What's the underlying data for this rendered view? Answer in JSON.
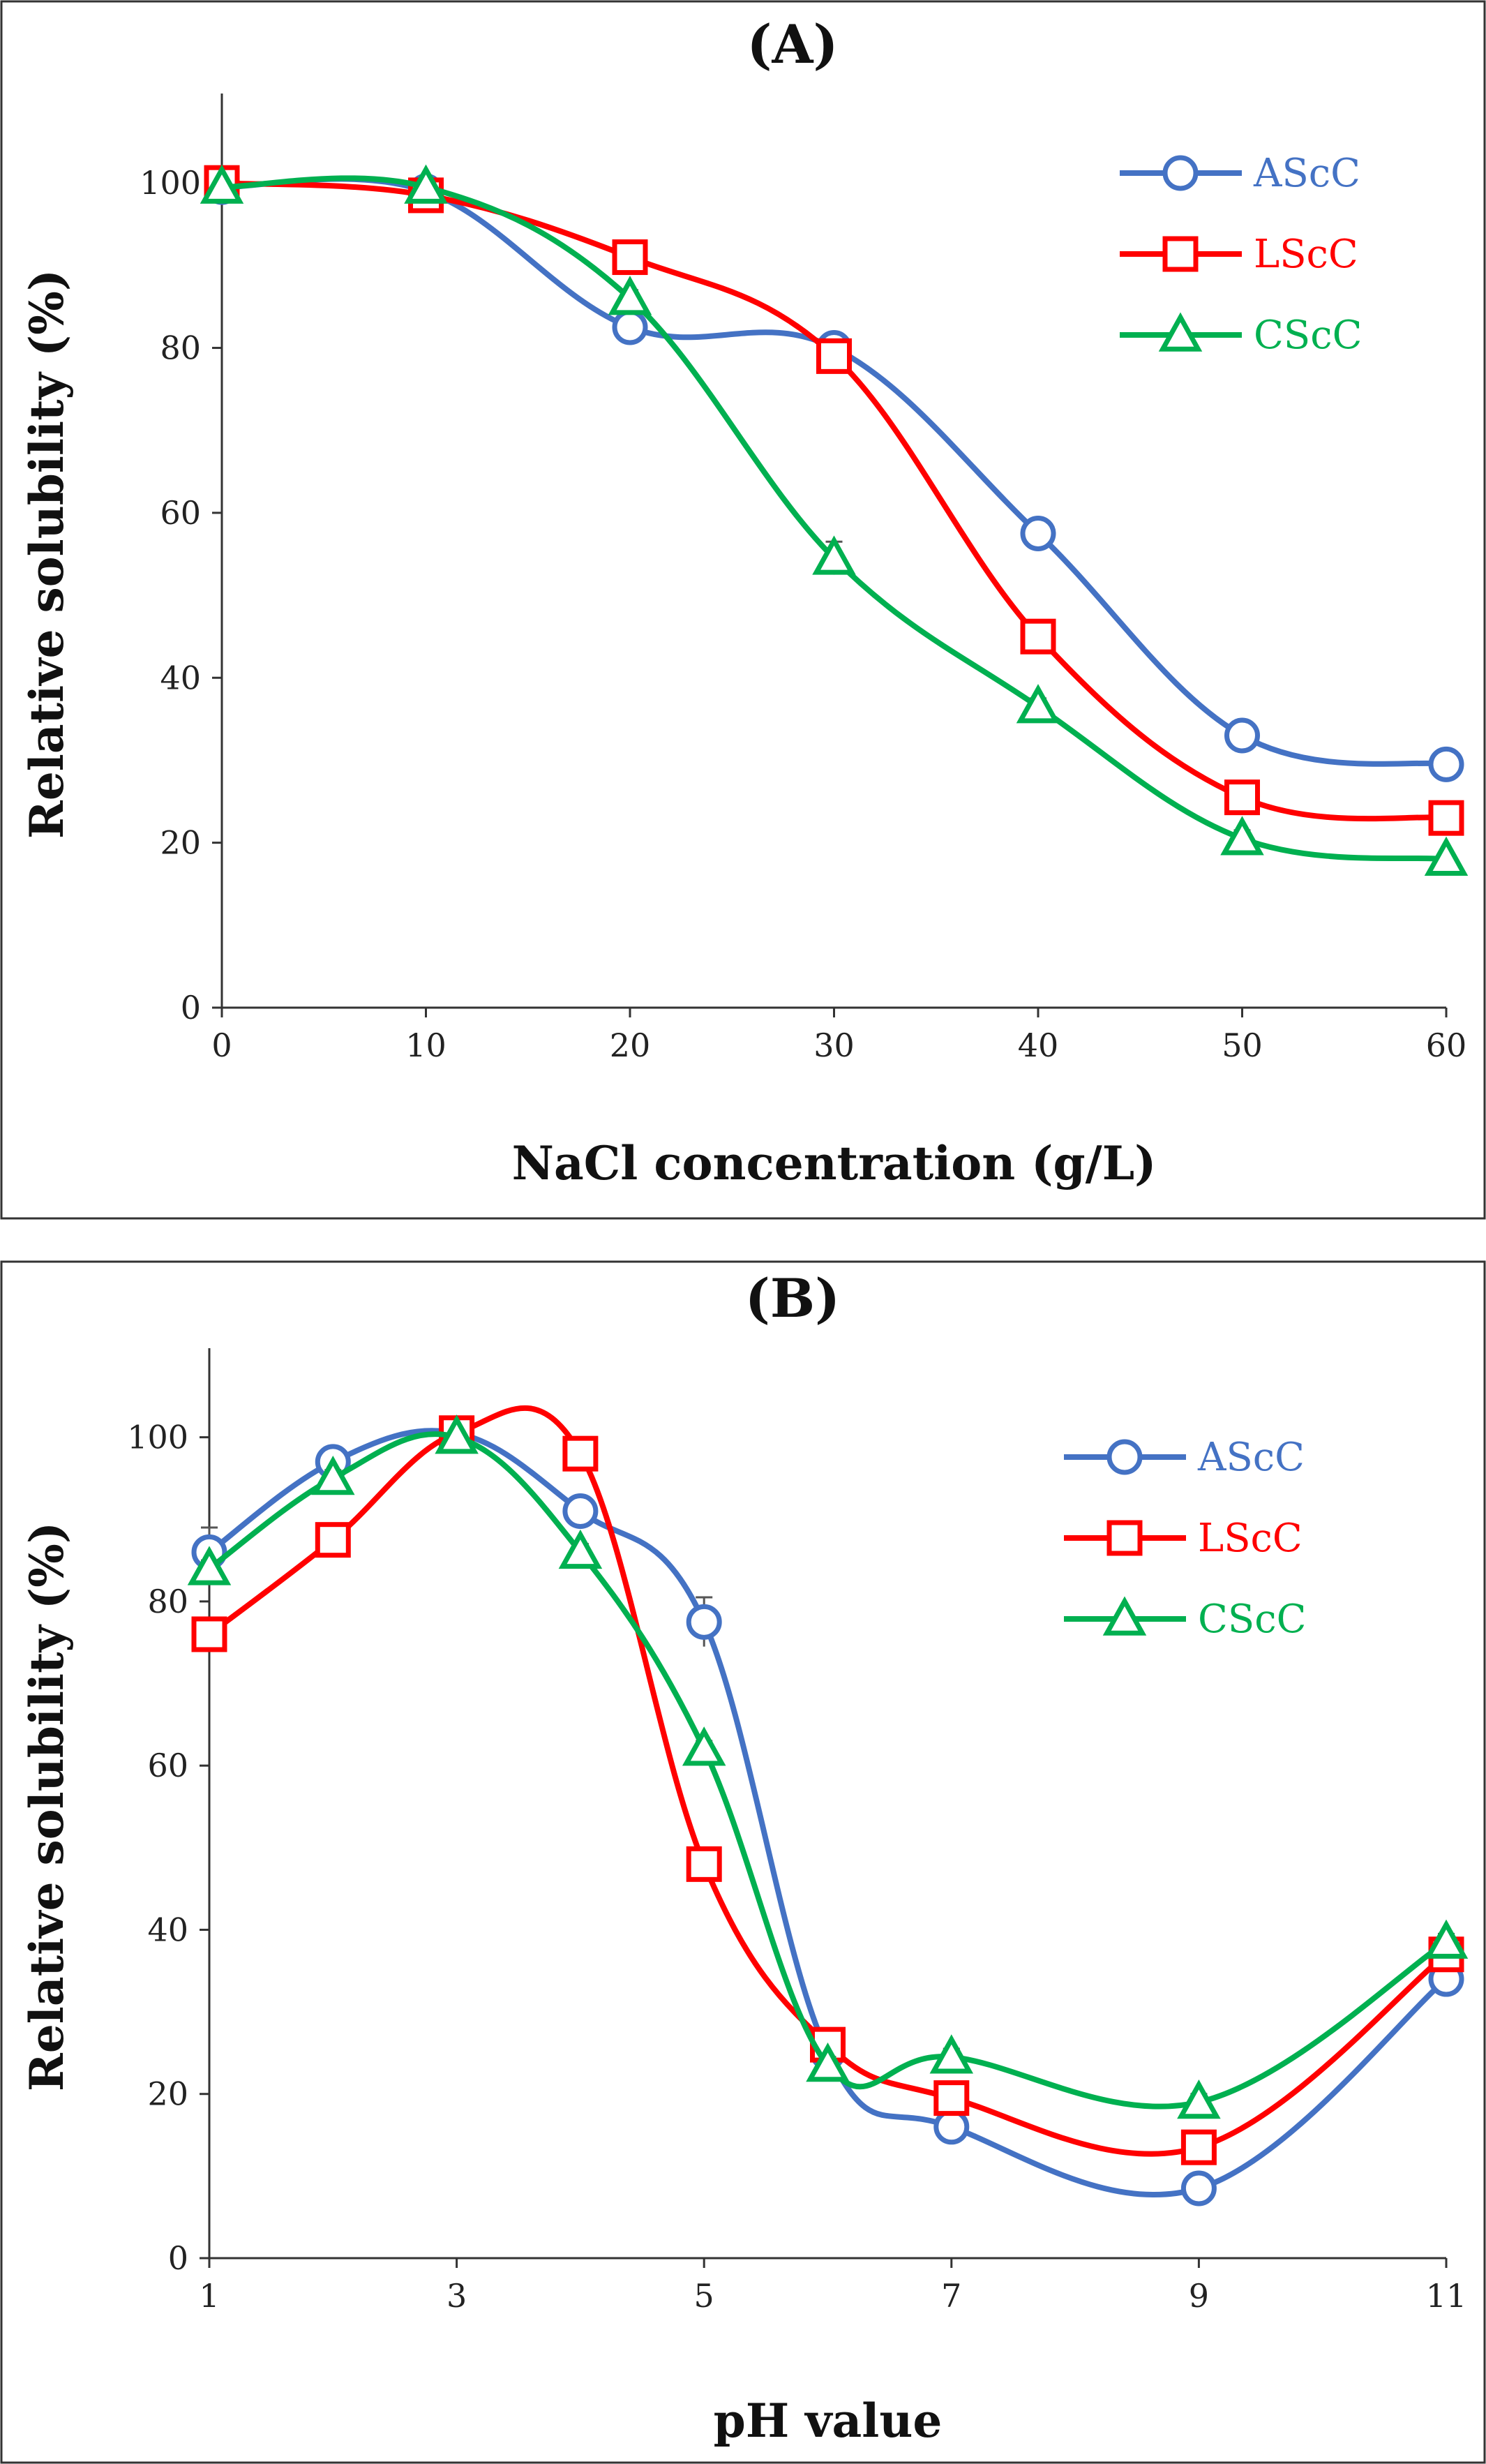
{
  "chart_data": [
    {
      "type": "line",
      "title": "(A)",
      "xlabel": "NaCl concentration (g/L)",
      "ylabel": "Relative solubility (%)",
      "x": [
        0,
        10,
        20,
        30,
        40,
        50,
        60
      ],
      "xticks": [
        "0",
        "10",
        "20",
        "30",
        "40",
        "50",
        "60"
      ],
      "xlim": [
        0,
        60
      ],
      "yticks": [
        "0",
        "20",
        "40",
        "60",
        "80",
        "100"
      ],
      "ylim": [
        0,
        110
      ],
      "legend_position": "top-right",
      "series": [
        {
          "name": "AScC",
          "color": "#4472C4",
          "marker": "circle",
          "values": [
            99.5,
            99,
            82.5,
            80,
            57.5,
            33,
            29.5
          ],
          "errors": [
            0.5,
            0.5,
            1,
            1,
            1,
            1,
            0.5
          ]
        },
        {
          "name": "LScC",
          "color": "#FF0000",
          "marker": "square",
          "values": [
            100,
            98.5,
            91,
            79,
            45,
            25.5,
            23
          ],
          "errors": [
            0.5,
            0.5,
            1,
            1,
            1,
            1,
            0.5
          ]
        },
        {
          "name": "CScC",
          "color": "#00B050",
          "marker": "triangle",
          "values": [
            99.5,
            99.5,
            86,
            54.5,
            36.5,
            20.5,
            18
          ],
          "errors": [
            0.5,
            0.5,
            1,
            2,
            1,
            1,
            0.5
          ]
        }
      ]
    },
    {
      "type": "line",
      "title": "(B)",
      "xlabel": "pH value",
      "ylabel": "Relative solubility (%)",
      "x": [
        1,
        2,
        3,
        4,
        5,
        6,
        7,
        9,
        11
      ],
      "xticks": [
        "1",
        "3",
        "5",
        "7",
        "9",
        "11"
      ],
      "xlim": [
        1,
        11
      ],
      "yticks": [
        "0",
        "20",
        "40",
        "60",
        "80",
        "100"
      ],
      "ylim": [
        0,
        110
      ],
      "legend_position": "top-right",
      "series": [
        {
          "name": "AScC",
          "color": "#4472C4",
          "marker": "circle",
          "values": [
            86,
            97,
            100.5,
            91,
            77.5,
            25,
            16,
            8.5,
            34
          ],
          "errors": [
            3,
            1.5,
            0.5,
            1.5,
            3,
            2,
            1,
            1,
            1
          ]
        },
        {
          "name": "LScC",
          "color": "#FF0000",
          "marker": "square",
          "values": [
            76,
            87.5,
            100.5,
            98,
            48,
            26,
            19.5,
            13.5,
            37
          ],
          "errors": [
            1,
            1,
            0.5,
            1,
            1,
            1,
            1,
            1,
            1
          ]
        },
        {
          "name": "CScC",
          "color": "#00B050",
          "marker": "triangle",
          "values": [
            84,
            95,
            100,
            86,
            62,
            23.5,
            24.5,
            19,
            38.5
          ],
          "errors": [
            1,
            1,
            0.5,
            1,
            1,
            1,
            1,
            1,
            1
          ]
        }
      ]
    }
  ]
}
